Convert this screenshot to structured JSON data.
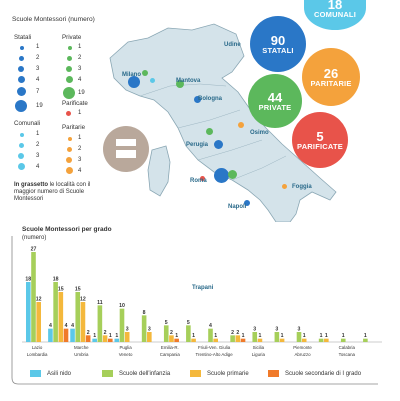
{
  "map_legend": {
    "title": "Scuole Montessori (numero)",
    "statali": {
      "label": "Statali",
      "levels": [
        "1",
        "2",
        "3",
        "4",
        "7",
        "19"
      ]
    },
    "private": {
      "label": "Private",
      "levels": [
        "1",
        "2",
        "3",
        "4",
        "19"
      ]
    },
    "parificate": {
      "label": "Parificate",
      "levels": [
        "1"
      ]
    },
    "comunali": {
      "label": "Comunali",
      "levels": [
        "1",
        "2",
        "3",
        "4"
      ]
    },
    "paritarie": {
      "label": "Paritarie",
      "levels": [
        "1",
        "2",
        "3",
        "4"
      ]
    },
    "note_bold": "In grassetto",
    "note_rest": "le località con il maggior numero di Scuole Montessori"
  },
  "totals": [
    {
      "number": "18",
      "label": "COMUNALI",
      "color": "#5bc8e8"
    },
    {
      "number": "90",
      "label": "STATALI",
      "color": "#2a77c7"
    },
    {
      "number": "26",
      "label": "PARITARIE",
      "color": "#f4a23c"
    },
    {
      "number": "44",
      "label": "PRIVATE",
      "color": "#5cb85c"
    },
    {
      "number": "5",
      "label": "PARIFICATE",
      "color": "#e8534a"
    }
  ],
  "cities": [
    "Udine",
    "Milano",
    "Mantova",
    "Bologna",
    "Perugia",
    "Osimo",
    "Roma",
    "Foggia",
    "Napoli",
    "Trapani"
  ],
  "chart_data": {
    "type": "bar",
    "title": "Scuole Montessori per grado",
    "subtitle": "(numero)",
    "categories": [
      "Lazio",
      "Lombardia",
      "Marche",
      "Umbria",
      "Puglia",
      "Veneto",
      "Emilia-R.",
      "Campania",
      "Friuli-Ven. Giulia",
      "Trentino-Alto Adige",
      "Sicilia",
      "Liguria",
      "Piemonte",
      "Abruzzo",
      "Calabria",
      "Toscana"
    ],
    "series": [
      {
        "name": "Asili nido",
        "color": "#5bc8e8",
        "values": [
          18,
          4,
          4,
          1,
          1,
          0,
          0,
          0,
          0,
          0,
          0,
          0,
          0,
          0,
          0,
          0
        ]
      },
      {
        "name": "Scuole dell'infanzia",
        "color": "#a6cf5a",
        "values": [
          27,
          18,
          15,
          11,
          10,
          8,
          5,
          5,
          4,
          2,
          3,
          3,
          3,
          1,
          1,
          1
        ]
      },
      {
        "name": "Scuole primarie",
        "color": "#f4b83c",
        "values": [
          12,
          15,
          12,
          2,
          3,
          3,
          2,
          1,
          1,
          2,
          1,
          1,
          1,
          1,
          0,
          0
        ]
      },
      {
        "name": "Scuole secondarie di I grado",
        "color": "#f07a2a",
        "values": [
          0,
          4,
          2,
          1,
          0,
          0,
          1,
          0,
          0,
          1,
          0,
          0,
          0,
          0,
          0,
          0
        ]
      }
    ],
    "ylim": [
      0,
      30
    ]
  }
}
